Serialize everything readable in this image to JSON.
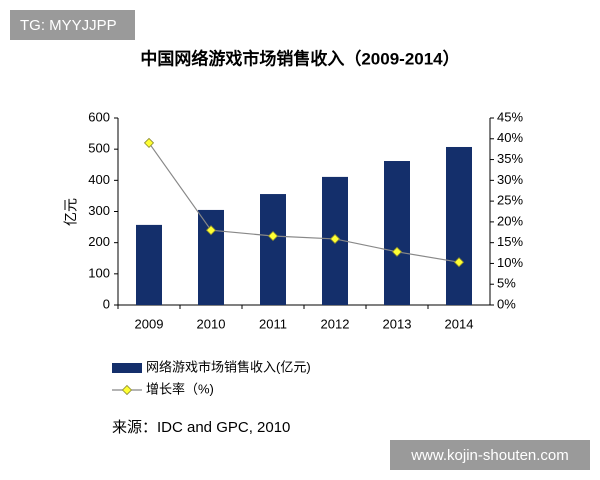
{
  "chart_data": {
    "type": "bar",
    "title": "中国网络游戏市场销售收入（2009-2014）",
    "y_label": "亿元",
    "categories": [
      "2009",
      "2010",
      "2011",
      "2012",
      "2013",
      "2014"
    ],
    "series": [
      {
        "name": "网络游戏市场销售收入(亿元)",
        "color": "#142f6b",
        "values": [
          257,
          305,
          356,
          411,
          462,
          507
        ]
      },
      {
        "name": "增长率（%)",
        "color": "#888888",
        "marker_color": "#ffff33",
        "axis": "y2",
        "values": [
          39,
          18,
          16.6,
          15.9,
          12.8,
          10.3
        ]
      }
    ],
    "ylim": [
      0,
      600
    ],
    "yticks": [
      0,
      100,
      200,
      300,
      400,
      500,
      600
    ],
    "y2lim": [
      0,
      45
    ],
    "y2ticks": [
      {
        "value": 0,
        "label": "0%"
      },
      {
        "value": 5,
        "label": "5%"
      },
      {
        "value": 10,
        "label": "10%"
      },
      {
        "value": 15,
        "label": "15%"
      },
      {
        "value": 20,
        "label": "20%"
      },
      {
        "value": 25,
        "label": "25%"
      },
      {
        "value": 30,
        "label": "30%"
      },
      {
        "value": 35,
        "label": "35%"
      },
      {
        "value": 40,
        "label": "40%"
      },
      {
        "value": 45,
        "label": "45%"
      }
    ],
    "source": "来源：IDC and GPC, 2010"
  },
  "watermarks": [
    "TG: MYYJJPP",
    "www.kojin-shouten.com"
  ]
}
